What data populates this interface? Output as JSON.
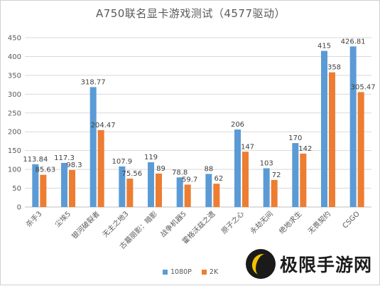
{
  "watermark": {
    "text": "极限手游网"
  },
  "chart_data": {
    "type": "bar",
    "title": "A750联名显卡游戏测试（4577驱动）",
    "xlabel": "",
    "ylabel": "",
    "ylim": [
      0,
      450
    ],
    "y_ticks": [
      0,
      50,
      100,
      150,
      200,
      250,
      300,
      350,
      400,
      450
    ],
    "grid": true,
    "legend_position": "bottom",
    "categories": [
      "杀手3",
      "尘埃5",
      "银河破裂者",
      "无主之地3",
      "古墓丽影：暗影",
      "战争机器5",
      "霍格沃兹之遗",
      "原子之心",
      "永劫无间",
      "绝地求生",
      "无畏契约",
      "CSGO"
    ],
    "series": [
      {
        "name": "1080P",
        "color": "#5b9bd5",
        "values": [
          113.84,
          117.3,
          318.77,
          107.9,
          119,
          78.8,
          88,
          206,
          103,
          170,
          415,
          426.81
        ],
        "labels": [
          "113.84",
          "117.3",
          "318.77",
          "107.9",
          "119",
          "78.8",
          "88",
          "206",
          "103",
          "170",
          "415",
          "426.81"
        ]
      },
      {
        "name": "2K",
        "color": "#ed7d31",
        "values": [
          85.63,
          98.3,
          204.47,
          75.56,
          89,
          59.7,
          62,
          147,
          72,
          142,
          358,
          305.47
        ],
        "labels": [
          "85.63",
          "98.3",
          "204.47",
          "75.56",
          "89",
          "59.7",
          "62",
          "147",
          "72",
          "142",
          "358",
          "305.47"
        ]
      }
    ]
  }
}
